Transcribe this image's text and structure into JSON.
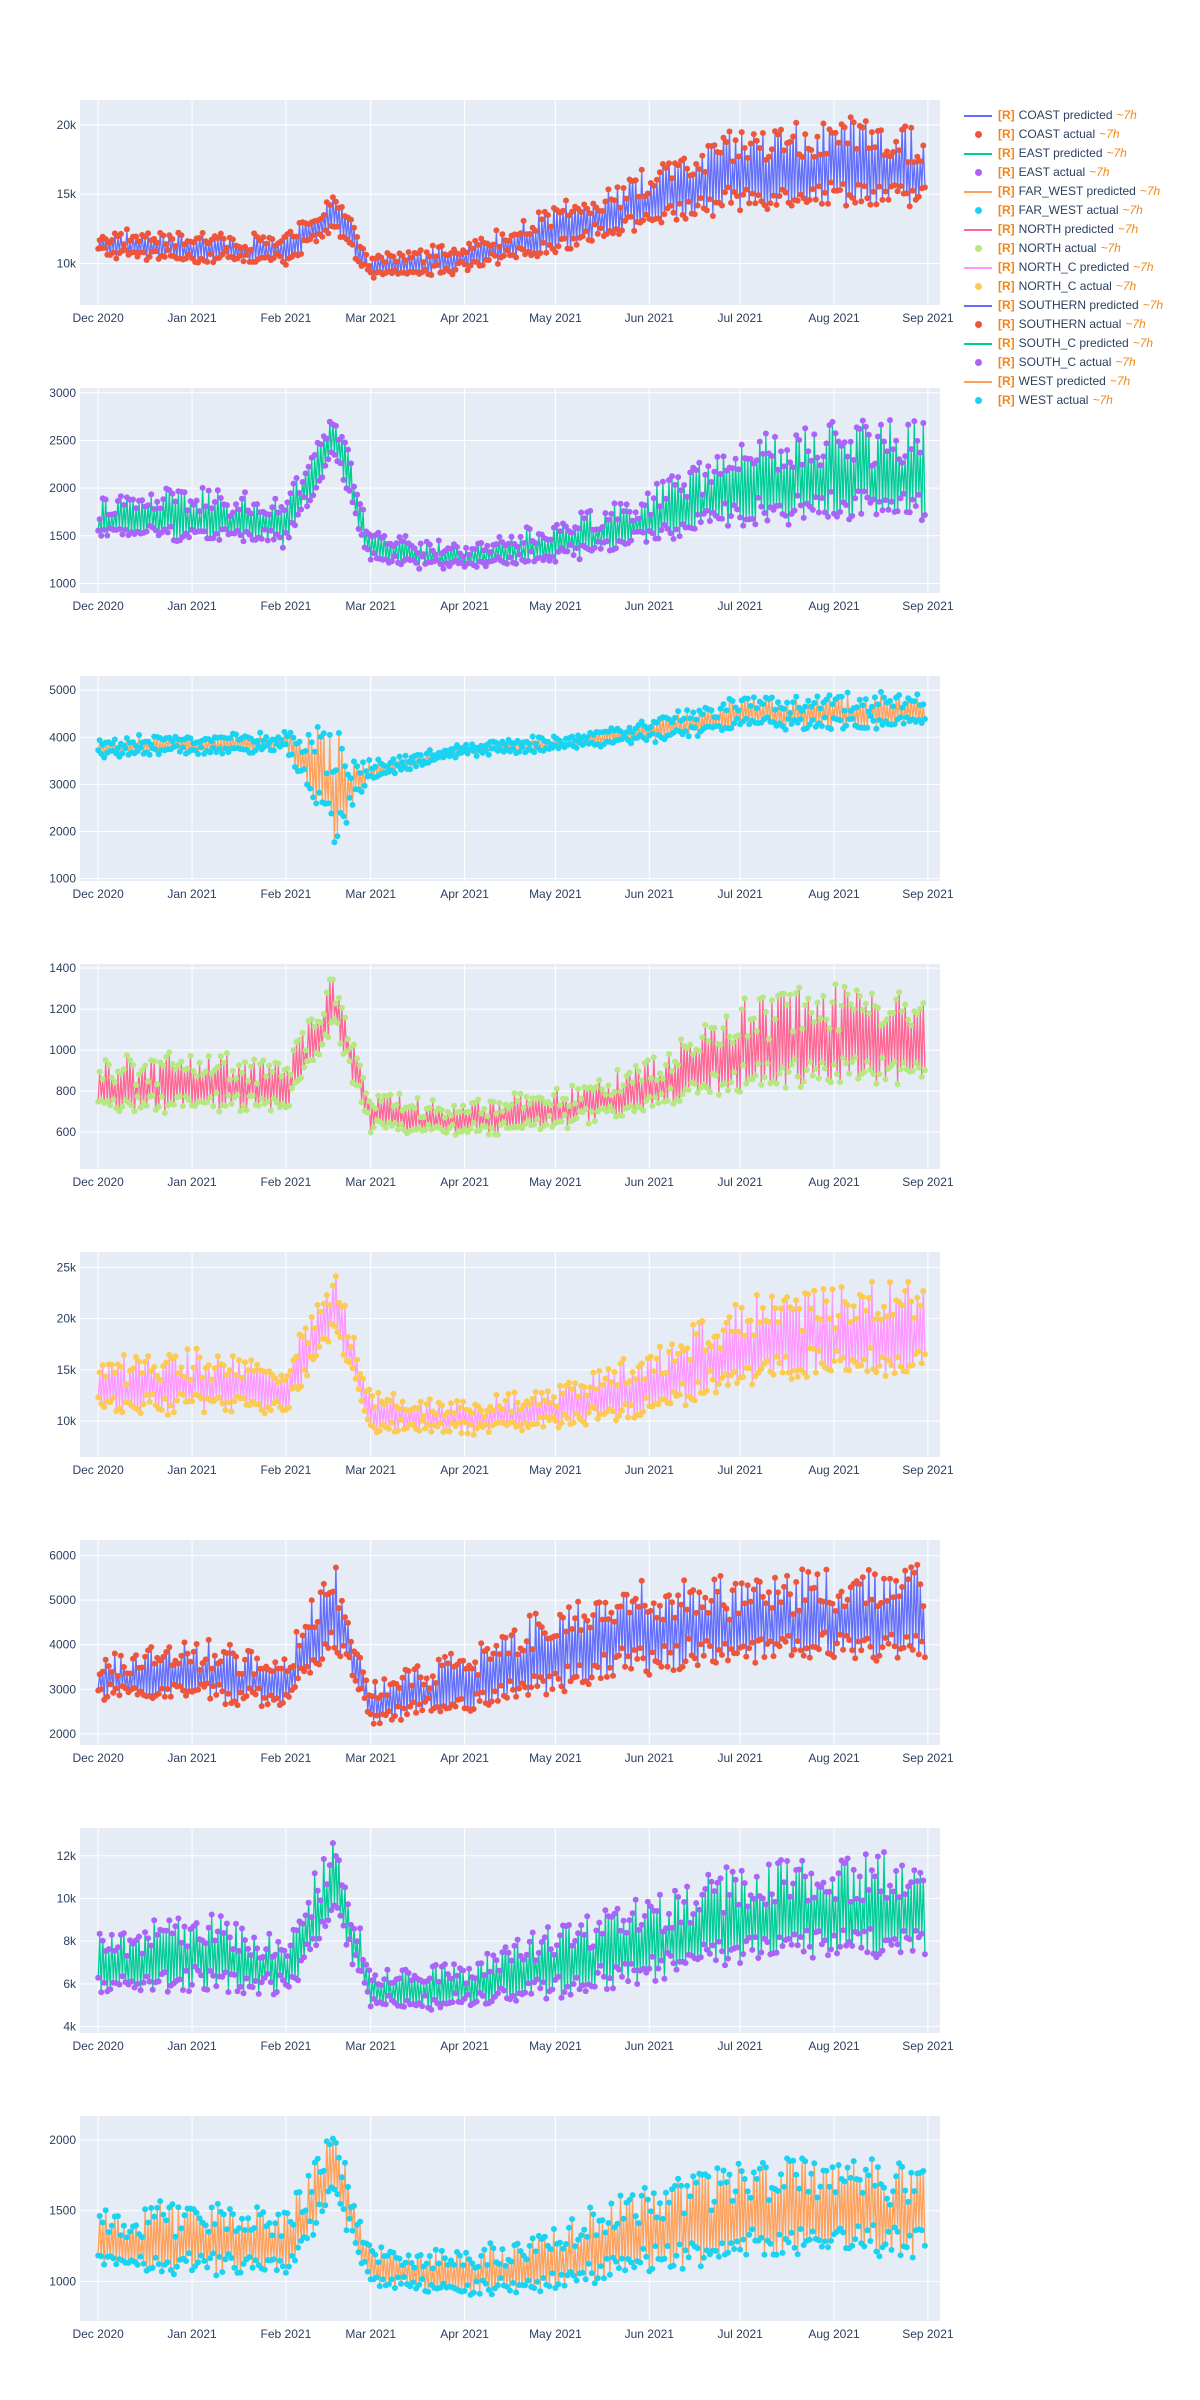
{
  "chart_data": [
    {
      "type": "line",
      "region": "COAST",
      "x_ticks": [
        "Dec 2020",
        "Jan 2021",
        "Feb 2021",
        "Mar 2021",
        "Apr 2021",
        "May 2021",
        "Jun 2021",
        "Jul 2021",
        "Aug 2021",
        "Sep 2021"
      ],
      "y_ticks": [
        {
          "v": 10000,
          "label": "10k"
        },
        {
          "v": 15000,
          "label": "15k"
        },
        {
          "v": 20000,
          "label": "20k"
        }
      ],
      "ylim": [
        7000,
        21800
      ],
      "trend_x": [
        "2020-12-01",
        "2021-01-01",
        "2021-02-01",
        "2021-02-17",
        "2021-03-01",
        "2021-04-01",
        "2021-05-01",
        "2021-06-01",
        "2021-07-01",
        "2021-08-01",
        "2021-09-01"
      ],
      "trend_lo": [
        10200,
        9800,
        9600,
        11500,
        8600,
        9000,
        10200,
        12000,
        12800,
        13200,
        12600
      ],
      "trend_hi": [
        12400,
        12200,
        12000,
        15500,
        10600,
        11600,
        14200,
        16800,
        19800,
        20400,
        20200
      ],
      "series": [
        {
          "name": "COAST predicted",
          "color": "#636efa",
          "mode": "line"
        },
        {
          "name": "COAST actual",
          "color": "#ef553b",
          "mode": "markers"
        }
      ]
    },
    {
      "type": "line",
      "region": "EAST",
      "x_ticks": [
        "Dec 2020",
        "Jan 2021",
        "Feb 2021",
        "Mar 2021",
        "Apr 2021",
        "May 2021",
        "Jun 2021",
        "Jul 2021",
        "Aug 2021",
        "Sep 2021"
      ],
      "y_ticks": [
        {
          "v": 1000,
          "label": "1000"
        },
        {
          "v": 1500,
          "label": "1500"
        },
        {
          "v": 2000,
          "label": "2000"
        },
        {
          "v": 2500,
          "label": "2500"
        },
        {
          "v": 3000,
          "label": "3000"
        }
      ],
      "ylim": [
        900,
        3050
      ],
      "trend_x": [
        "2020-12-01",
        "2021-01-01",
        "2021-02-01",
        "2021-02-17",
        "2021-03-01",
        "2021-04-01",
        "2021-05-01",
        "2021-06-01",
        "2021-07-01",
        "2021-08-01",
        "2021-09-01"
      ],
      "trend_lo": [
        1400,
        1350,
        1300,
        2200,
        1150,
        1100,
        1150,
        1300,
        1450,
        1500,
        1450
      ],
      "trend_hi": [
        1900,
        2000,
        1900,
        2900,
        1550,
        1400,
        1650,
        2000,
        2500,
        2700,
        2800
      ],
      "series": [
        {
          "name": "EAST predicted",
          "color": "#00cc96",
          "mode": "line"
        },
        {
          "name": "EAST actual",
          "color": "#ab63fa",
          "mode": "markers"
        }
      ]
    },
    {
      "type": "line",
      "region": "FAR_WEST",
      "x_ticks": [
        "Dec 2020",
        "Jan 2021",
        "Feb 2021",
        "Mar 2021",
        "Apr 2021",
        "May 2021",
        "Jun 2021",
        "Jul 2021",
        "Aug 2021",
        "Sep 2021"
      ],
      "y_ticks": [
        {
          "v": 1000,
          "label": "1000"
        },
        {
          "v": 2000,
          "label": "2000"
        },
        {
          "v": 3000,
          "label": "3000"
        },
        {
          "v": 4000,
          "label": "4000"
        },
        {
          "v": 5000,
          "label": "5000"
        }
      ],
      "ylim": [
        950,
        5300
      ],
      "trend_x": [
        "2020-12-01",
        "2021-01-01",
        "2021-02-01",
        "2021-02-17",
        "2021-03-01",
        "2021-04-01",
        "2021-05-01",
        "2021-06-01",
        "2021-07-01",
        "2021-08-01",
        "2021-09-01"
      ],
      "trend_lo": [
        3550,
        3600,
        3650,
        1300,
        3050,
        3600,
        3700,
        3850,
        4050,
        4050,
        4150
      ],
      "trend_hi": [
        3950,
        4050,
        4100,
        4300,
        3450,
        3850,
        4000,
        4350,
        4900,
        4900,
        4950
      ],
      "series": [
        {
          "name": "FAR_WEST predicted",
          "color": "#ffa15a",
          "mode": "line"
        },
        {
          "name": "FAR_WEST actual",
          "color": "#19d3f3",
          "mode": "markers"
        }
      ]
    },
    {
      "type": "line",
      "region": "NORTH",
      "x_ticks": [
        "Dec 2020",
        "Jan 2021",
        "Feb 2021",
        "Mar 2021",
        "Apr 2021",
        "May 2021",
        "Jun 2021",
        "Jul 2021",
        "Aug 2021",
        "Sep 2021"
      ],
      "y_ticks": [
        {
          "v": 600,
          "label": "600"
        },
        {
          "v": 800,
          "label": "800"
        },
        {
          "v": 1000,
          "label": "1000"
        },
        {
          "v": 1200,
          "label": "1200"
        },
        {
          "v": 1400,
          "label": "1400"
        }
      ],
      "ylim": [
        420,
        1420
      ],
      "trend_x": [
        "2020-12-01",
        "2021-01-01",
        "2021-02-01",
        "2021-02-17",
        "2021-03-01",
        "2021-04-01",
        "2021-05-01",
        "2021-06-01",
        "2021-07-01",
        "2021-08-01",
        "2021-09-01"
      ],
      "trend_lo": [
        650,
        640,
        650,
        1050,
        560,
        560,
        570,
        650,
        720,
        740,
        720
      ],
      "trend_hi": [
        950,
        1000,
        950,
        1380,
        800,
        740,
        820,
        950,
        1250,
        1350,
        1360
      ],
      "series": [
        {
          "name": "NORTH predicted",
          "color": "#ff6692",
          "mode": "line"
        },
        {
          "name": "NORTH actual",
          "color": "#b6e880",
          "mode": "markers"
        }
      ]
    },
    {
      "type": "line",
      "region": "NORTH_C",
      "x_ticks": [
        "Dec 2020",
        "Jan 2021",
        "Feb 2021",
        "Mar 2021",
        "Apr 2021",
        "May 2021",
        "Jun 2021",
        "Jul 2021",
        "Aug 2021",
        "Sep 2021"
      ],
      "y_ticks": [
        {
          "v": 10000,
          "label": "10k"
        },
        {
          "v": 15000,
          "label": "15k"
        },
        {
          "v": 20000,
          "label": "20k"
        },
        {
          "v": 25000,
          "label": "25k"
        }
      ],
      "ylim": [
        6500,
        26500
      ],
      "trend_x": [
        "2020-12-01",
        "2021-01-01",
        "2021-02-01",
        "2021-02-17",
        "2021-03-01",
        "2021-04-01",
        "2021-05-01",
        "2021-06-01",
        "2021-07-01",
        "2021-08-01",
        "2021-09-01"
      ],
      "trend_lo": [
        10000,
        9800,
        9800,
        17500,
        8200,
        8200,
        8500,
        9500,
        12000,
        13000,
        12500
      ],
      "trend_hi": [
        16000,
        17000,
        16000,
        25000,
        13000,
        12000,
        13500,
        17000,
        22000,
        23500,
        24000
      ],
      "series": [
        {
          "name": "NORTH_C predicted",
          "color": "#ff97ff",
          "mode": "line"
        },
        {
          "name": "NORTH_C actual",
          "color": "#fecb52",
          "mode": "markers"
        }
      ]
    },
    {
      "type": "line",
      "region": "SOUTHERN",
      "x_ticks": [
        "Dec 2020",
        "Jan 2021",
        "Feb 2021",
        "Mar 2021",
        "Apr 2021",
        "May 2021",
        "Jun 2021",
        "Jul 2021",
        "Aug 2021",
        "Sep 2021"
      ],
      "y_ticks": [
        {
          "v": 2000,
          "label": "2000"
        },
        {
          "v": 3000,
          "label": "3000"
        },
        {
          "v": 4000,
          "label": "4000"
        },
        {
          "v": 5000,
          "label": "5000"
        },
        {
          "v": 6000,
          "label": "6000"
        }
      ],
      "ylim": [
        1750,
        6350
      ],
      "trend_x": [
        "2020-12-01",
        "2021-01-01",
        "2021-02-01",
        "2021-02-17",
        "2021-03-01",
        "2021-04-01",
        "2021-05-01",
        "2021-06-01",
        "2021-07-01",
        "2021-08-01",
        "2021-09-01"
      ],
      "trend_lo": [
        2600,
        2500,
        2400,
        3500,
        2100,
        2200,
        2600,
        3000,
        3200,
        3300,
        3300
      ],
      "trend_hi": [
        3700,
        4200,
        3800,
        6100,
        3200,
        3900,
        4900,
        5500,
        5600,
        5700,
        5800
      ],
      "series": [
        {
          "name": "SOUTHERN predicted",
          "color": "#636efa",
          "mode": "line"
        },
        {
          "name": "SOUTHERN actual",
          "color": "#ef553b",
          "mode": "markers"
        }
      ]
    },
    {
      "type": "line",
      "region": "SOUTH_C",
      "x_ticks": [
        "Dec 2020",
        "Jan 2021",
        "Feb 2021",
        "Mar 2021",
        "Apr 2021",
        "May 2021",
        "Jun 2021",
        "Jul 2021",
        "Aug 2021",
        "Sep 2021"
      ],
      "y_ticks": [
        {
          "v": 4000,
          "label": "4k"
        },
        {
          "v": 6000,
          "label": "6k"
        },
        {
          "v": 8000,
          "label": "8k"
        },
        {
          "v": 10000,
          "label": "10k"
        },
        {
          "v": 12000,
          "label": "12k"
        }
      ],
      "ylim": [
        3700,
        13300
      ],
      "trend_x": [
        "2020-12-01",
        "2021-01-01",
        "2021-02-01",
        "2021-02-17",
        "2021-03-01",
        "2021-04-01",
        "2021-05-01",
        "2021-06-01",
        "2021-07-01",
        "2021-08-01",
        "2021-09-01"
      ],
      "trend_lo": [
        5000,
        4900,
        4800,
        8000,
        4500,
        4400,
        4700,
        5300,
        6200,
        6400,
        6300
      ],
      "trend_hi": [
        8200,
        9500,
        8500,
        13000,
        6800,
        7000,
        9000,
        10000,
        11800,
        12000,
        12200
      ],
      "series": [
        {
          "name": "SOUTH_C predicted",
          "color": "#00cc96",
          "mode": "line"
        },
        {
          "name": "SOUTH_C actual",
          "color": "#ab63fa",
          "mode": "markers"
        }
      ]
    },
    {
      "type": "line",
      "region": "WEST",
      "x_ticks": [
        "Dec 2020",
        "Jan 2021",
        "Feb 2021",
        "Mar 2021",
        "Apr 2021",
        "May 2021",
        "Jun 2021",
        "Jul 2021",
        "Aug 2021",
        "Sep 2021"
      ],
      "y_ticks": [
        {
          "v": 1000,
          "label": "1000"
        },
        {
          "v": 1500,
          "label": "1500"
        },
        {
          "v": 2000,
          "label": "2000"
        }
      ],
      "ylim": [
        720,
        2170
      ],
      "trend_x": [
        "2020-12-01",
        "2021-01-01",
        "2021-02-01",
        "2021-02-17",
        "2021-03-01",
        "2021-04-01",
        "2021-05-01",
        "2021-06-01",
        "2021-07-01",
        "2021-08-01",
        "2021-09-01"
      ],
      "trend_lo": [
        1000,
        950,
        950,
        1500,
        900,
        850,
        850,
        950,
        1050,
        1100,
        1050
      ],
      "trend_hi": [
        1500,
        1600,
        1500,
        2100,
        1250,
        1200,
        1400,
        1700,
        1850,
        1900,
        1850
      ],
      "series": [
        {
          "name": "WEST predicted",
          "color": "#ffa15a",
          "mode": "line"
        },
        {
          "name": "WEST actual",
          "color": "#19d3f3",
          "mode": "markers"
        }
      ]
    }
  ],
  "legend": {
    "tag": "[R]",
    "lag": "~7h",
    "items": [
      {
        "name": "COAST predicted",
        "color": "#636efa",
        "symbol": "line"
      },
      {
        "name": "COAST actual",
        "color": "#ef553b",
        "symbol": "dot"
      },
      {
        "name": "EAST predicted",
        "color": "#00cc96",
        "symbol": "line"
      },
      {
        "name": "EAST actual",
        "color": "#ab63fa",
        "symbol": "dot"
      },
      {
        "name": "FAR_WEST predicted",
        "color": "#ffa15a",
        "symbol": "line"
      },
      {
        "name": "FAR_WEST actual",
        "color": "#19d3f3",
        "symbol": "dot"
      },
      {
        "name": "NORTH predicted",
        "color": "#ff6692",
        "symbol": "line"
      },
      {
        "name": "NORTH actual",
        "color": "#b6e880",
        "symbol": "dot"
      },
      {
        "name": "NORTH_C predicted",
        "color": "#ff97ff",
        "symbol": "line"
      },
      {
        "name": "NORTH_C actual",
        "color": "#fecb52",
        "symbol": "dot"
      },
      {
        "name": "SOUTHERN predicted",
        "color": "#636efa",
        "symbol": "line"
      },
      {
        "name": "SOUTHERN actual",
        "color": "#ef553b",
        "symbol": "dot"
      },
      {
        "name": "SOUTH_C predicted",
        "color": "#00cc96",
        "symbol": "line"
      },
      {
        "name": "SOUTH_C actual",
        "color": "#ab63fa",
        "symbol": "dot"
      },
      {
        "name": "WEST predicted",
        "color": "#ffa15a",
        "symbol": "line"
      },
      {
        "name": "WEST actual",
        "color": "#19d3f3",
        "symbol": "dot"
      }
    ]
  },
  "colors": {
    "plot_bg": "#e5ecf6",
    "grid": "#ffffff",
    "text": "#2a3f5f",
    "accent": "#f58518"
  }
}
